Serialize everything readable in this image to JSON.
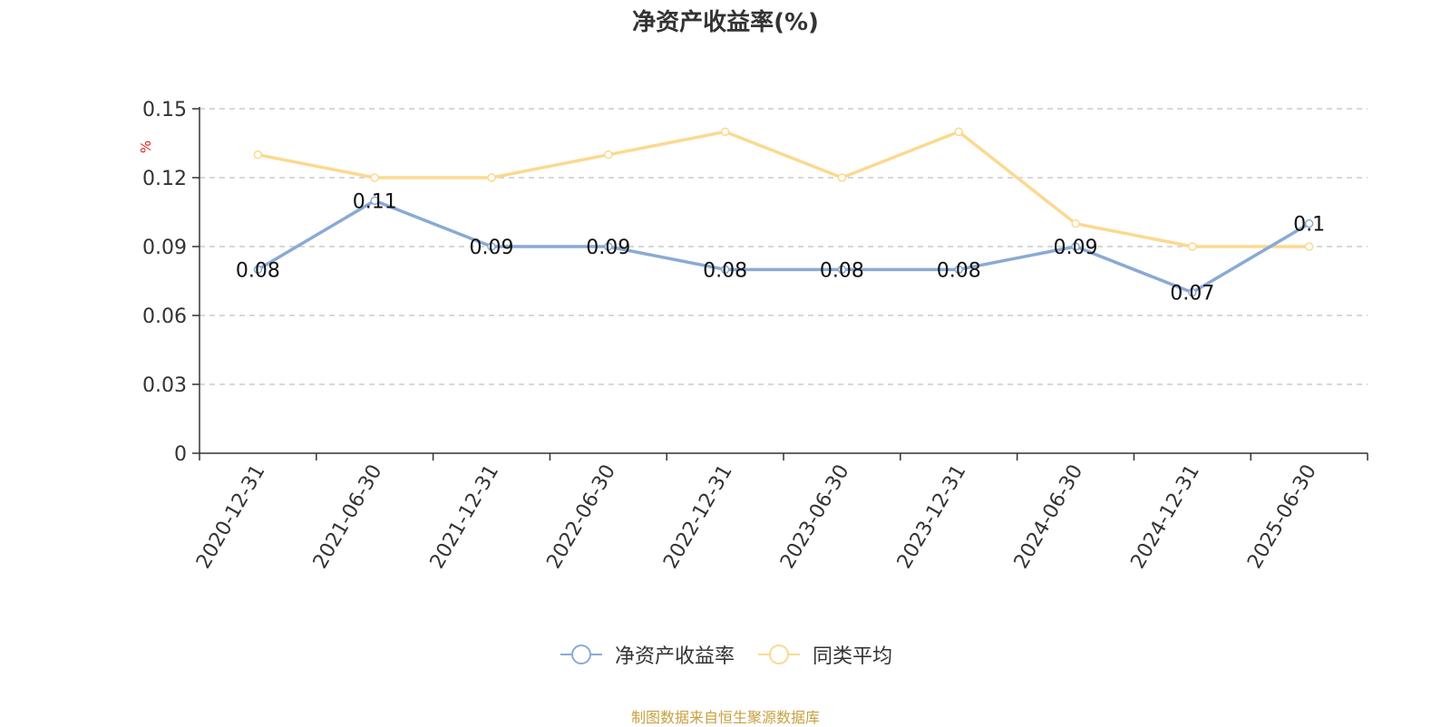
{
  "chart_data": {
    "type": "line",
    "title": "净资产收益率(%)",
    "ylabel": "%",
    "ylim": [
      0,
      0.15
    ],
    "yticks": [
      "0",
      "0.03",
      "0.06",
      "0.09",
      "0.12",
      "0.15"
    ],
    "grid": true,
    "legend_position": "bottom",
    "categories": [
      "2020-12-31",
      "2021-06-30",
      "2021-12-31",
      "2022-06-30",
      "2022-12-31",
      "2023-06-30",
      "2023-12-31",
      "2024-06-30",
      "2024-12-31",
      "2025-06-30"
    ],
    "series": [
      {
        "name": "净资产收益率",
        "color": "#8aaad4",
        "values": [
          0.08,
          0.11,
          0.09,
          0.09,
          0.08,
          0.08,
          0.08,
          0.09,
          0.07,
          0.1
        ],
        "labels": [
          "0.08",
          "0.11",
          "0.09",
          "0.09",
          "0.08",
          "0.08",
          "0.08",
          "0.09",
          "0.07",
          "0.1"
        ]
      },
      {
        "name": "同类平均",
        "color": "#fbd990",
        "values": [
          0.13,
          0.12,
          0.12,
          0.13,
          0.14,
          0.12,
          0.14,
          0.1,
          0.09,
          0.09
        ]
      }
    ]
  },
  "source_note": "制图数据来自恒生聚源数据库"
}
